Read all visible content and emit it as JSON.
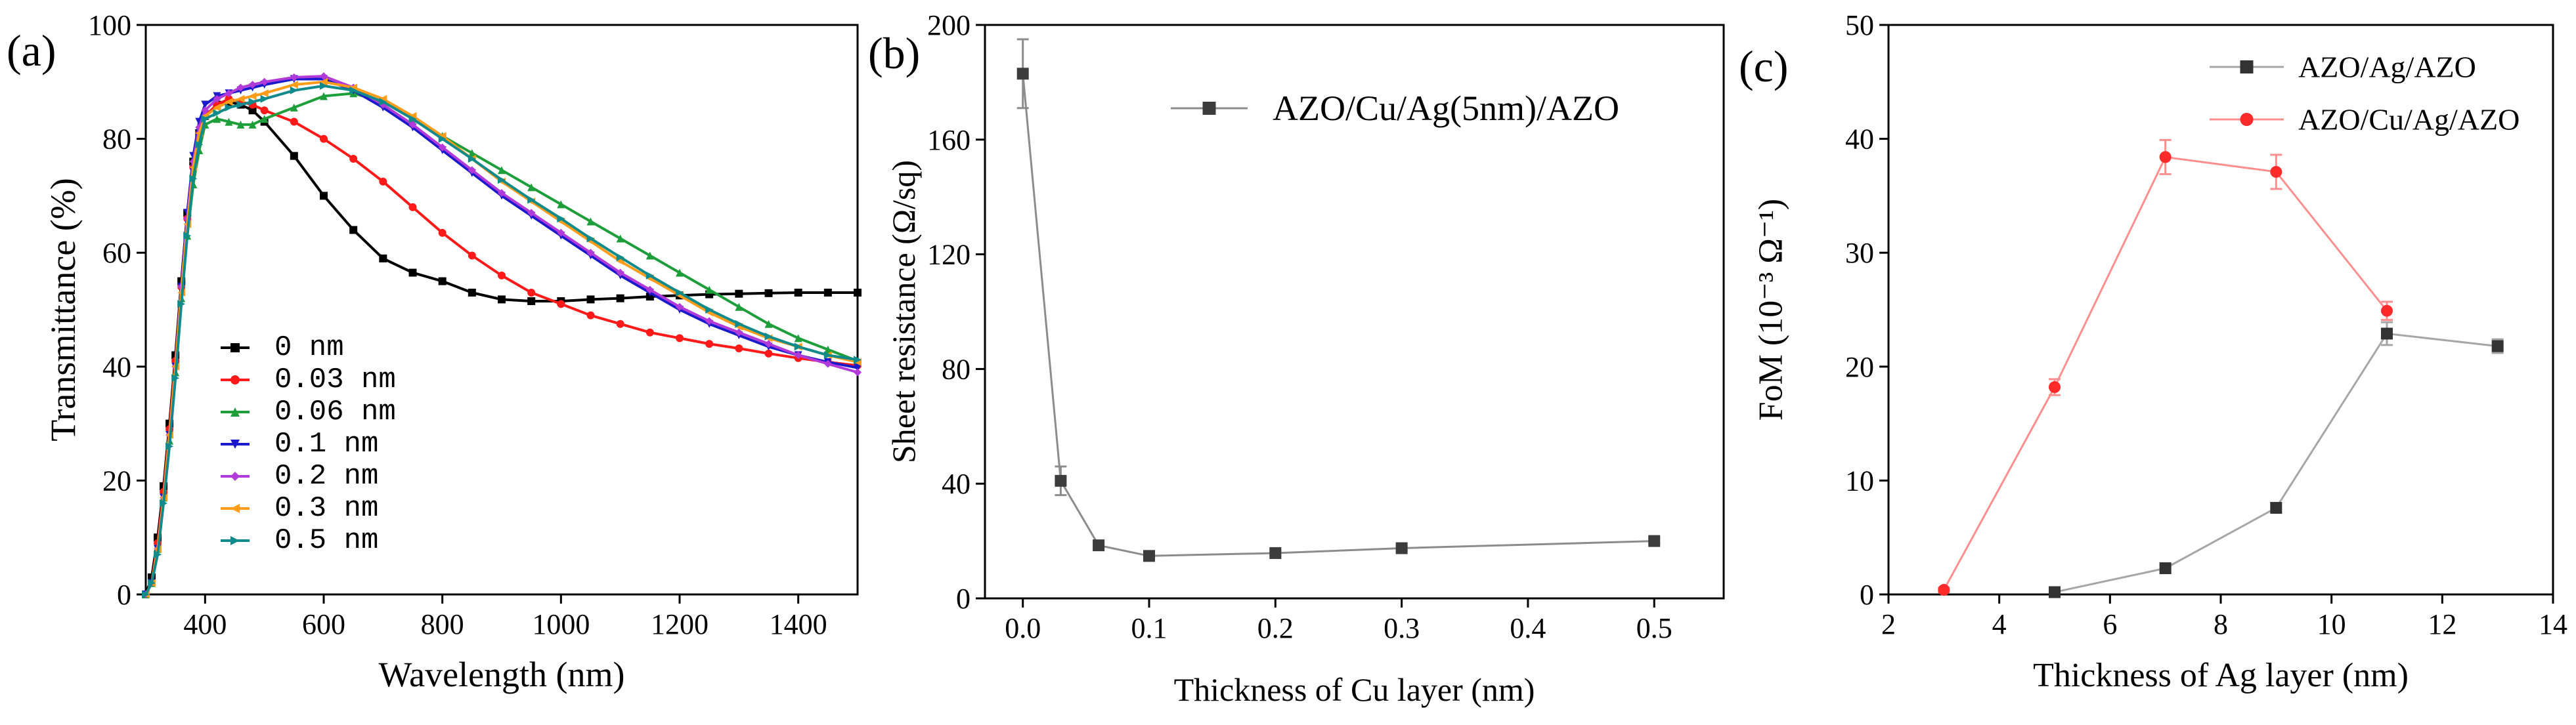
{
  "chart_data": [
    {
      "panel_label": "(a)",
      "type": "line",
      "xlabel": "Wavelength (nm)",
      "ylabel": "Transmittance (%)",
      "xlim": [
        300,
        1500
      ],
      "ylim": [
        0,
        100
      ],
      "xticks": [
        "400",
        "600",
        "800",
        "1000",
        "1200",
        "1400"
      ],
      "yticks": [
        "0",
        "20",
        "40",
        "60",
        "80",
        "100"
      ],
      "grid": false,
      "legend_position": "center-left",
      "x": [
        300,
        310,
        320,
        330,
        340,
        350,
        360,
        370,
        380,
        390,
        400,
        420,
        440,
        460,
        480,
        500,
        550,
        600,
        650,
        700,
        750,
        800,
        850,
        900,
        950,
        1000,
        1050,
        1100,
        1150,
        1200,
        1250,
        1300,
        1350,
        1400,
        1450,
        1500
      ],
      "series": [
        {
          "name": "0 nm",
          "color": "#000000",
          "marker": "square",
          "y": [
            0,
            3,
            10,
            19,
            30,
            42,
            55,
            67,
            76,
            81,
            84,
            86,
            86.5,
            86,
            85,
            83,
            77,
            70,
            64,
            59,
            56.5,
            55,
            53,
            51.8,
            51.5,
            51.5,
            51.8,
            52,
            52.3,
            52.5,
            52.7,
            52.8,
            52.9,
            53,
            53,
            53
          ]
        },
        {
          "name": "0.03 nm",
          "color": "#ff1a1a",
          "marker": "circle",
          "y": [
            0,
            2,
            9,
            18,
            29,
            41,
            54,
            66,
            75,
            81,
            84,
            86,
            87,
            86.5,
            86,
            85,
            83,
            80,
            76.5,
            72.5,
            68,
            63.5,
            59.5,
            56,
            53,
            51,
            49,
            47.5,
            46,
            45,
            44,
            43.2,
            42.3,
            41.5,
            40.8,
            40.2
          ]
        },
        {
          "name": "0.06 nm",
          "color": "#1e9e3a",
          "marker": "triangle-up",
          "y": [
            0,
            2,
            8,
            17,
            27,
            39,
            52,
            63,
            72,
            78,
            82.5,
            83.5,
            83,
            82.5,
            82.5,
            83.5,
            85.5,
            87.5,
            88,
            86.5,
            83.5,
            80.5,
            77.5,
            74.5,
            71.5,
            68.5,
            65.5,
            62.5,
            59.5,
            56.5,
            53.5,
            50.5,
            47.5,
            45,
            43,
            41
          ]
        },
        {
          "name": "0.1 nm",
          "color": "#1a1acc",
          "marker": "triangle-down",
          "y": [
            0,
            2,
            8,
            17,
            28,
            40,
            54,
            67,
            77,
            83,
            86,
            87.5,
            88,
            88.5,
            89,
            89.5,
            90.5,
            90.5,
            88.5,
            85.5,
            82,
            78,
            74,
            70,
            66.5,
            63,
            59.5,
            56,
            53,
            50,
            47.5,
            45.5,
            43.5,
            42,
            40.8,
            39.8
          ]
        },
        {
          "name": "0.2 nm",
          "color": "#b23ad8",
          "marker": "diamond",
          "y": [
            0,
            2,
            8,
            17,
            28,
            40,
            54,
            66,
            76,
            82,
            85,
            87,
            88,
            89,
            89.5,
            90,
            90.8,
            91,
            89,
            86,
            82.5,
            78.5,
            74.5,
            70.5,
            67,
            63.5,
            60,
            56.5,
            53.5,
            50.5,
            48,
            46,
            44,
            42,
            40.5,
            39
          ]
        },
        {
          "name": "0.3 nm",
          "color": "#ff9c1a",
          "marker": "triangle-left",
          "y": [
            0,
            2,
            8,
            17,
            28,
            40,
            53,
            65,
            75,
            81,
            84,
            85.5,
            86.5,
            87,
            87.5,
            88,
            89.5,
            90,
            89,
            87,
            84,
            80.5,
            76.5,
            72.5,
            69,
            65.5,
            62,
            58.5,
            55.5,
            52.5,
            49.5,
            47,
            45,
            43.5,
            42,
            40.8
          ]
        },
        {
          "name": "0.5 nm",
          "color": "#108a8a",
          "marker": "triangle-right",
          "y": [
            0,
            2,
            7,
            16,
            26,
            38,
            51,
            63,
            73,
            79,
            83.5,
            84.5,
            85.5,
            86,
            86.5,
            87,
            88.5,
            89.3,
            88.5,
            86.5,
            83.5,
            80,
            76.5,
            72.8,
            69.3,
            66,
            62.5,
            59.2,
            56,
            53,
            50,
            47.5,
            45.3,
            43.5,
            42,
            41.2
          ]
        }
      ]
    },
    {
      "panel_label": "(b)",
      "type": "line",
      "xlabel": "Thickness of Cu layer (nm)",
      "ylabel": "Sheet resistance (Ω/sq)",
      "xlim": [
        -0.03,
        0.555
      ],
      "ylim": [
        0,
        200
      ],
      "xticks": [
        "0.0",
        "0.1",
        "0.2",
        "0.3",
        "0.4",
        "0.5"
      ],
      "yticks": [
        "0",
        "40",
        "80",
        "120",
        "160",
        "200"
      ],
      "grid": false,
      "legend_position": "top-right",
      "series": [
        {
          "name": "AZO/Cu/Ag(5nm)/AZO",
          "color": "#3c3c3c",
          "line_color": "#8c8c8c",
          "marker": "square",
          "x": [
            0,
            0.03,
            0.06,
            0.1,
            0.2,
            0.3,
            0.5
          ],
          "y": [
            183,
            41,
            18.5,
            14.8,
            15.8,
            17.5,
            20
          ],
          "yerr": [
            12,
            5,
            1,
            0.6,
            0.8,
            0.8,
            0.9
          ]
        }
      ]
    },
    {
      "panel_label": "(c)",
      "type": "line",
      "xlabel": "Thickness of Ag layer (nm)",
      "ylabel": "FoM (10⁻³ Ω⁻¹)",
      "xlim": [
        2,
        14
      ],
      "ylim": [
        0,
        50
      ],
      "xticks": [
        "2",
        "4",
        "6",
        "8",
        "10",
        "12",
        "14"
      ],
      "yticks": [
        "0",
        "10",
        "20",
        "30",
        "40",
        "50"
      ],
      "grid": false,
      "legend_position": "top-right",
      "series": [
        {
          "name": "AZO/Ag/AZO",
          "color": "#333333",
          "line_color": "#a6a6a6",
          "marker": "square",
          "x": [
            5,
            7,
            9,
            11,
            13
          ],
          "y": [
            0.2,
            2.3,
            7.6,
            22.9,
            21.8
          ],
          "yerr": [
            0.1,
            0.3,
            0.4,
            1.0,
            0.6
          ]
        },
        {
          "name": "AZO/Cu/Ag/AZO",
          "color": "#ff2a2a",
          "line_color": "#ff8f8f",
          "marker": "circle",
          "x": [
            3,
            5,
            7,
            9,
            11
          ],
          "y": [
            0.4,
            18.2,
            38.4,
            37.1,
            24.9
          ],
          "yerr": [
            0.2,
            0.7,
            1.5,
            1.5,
            0.8
          ]
        }
      ]
    }
  ]
}
